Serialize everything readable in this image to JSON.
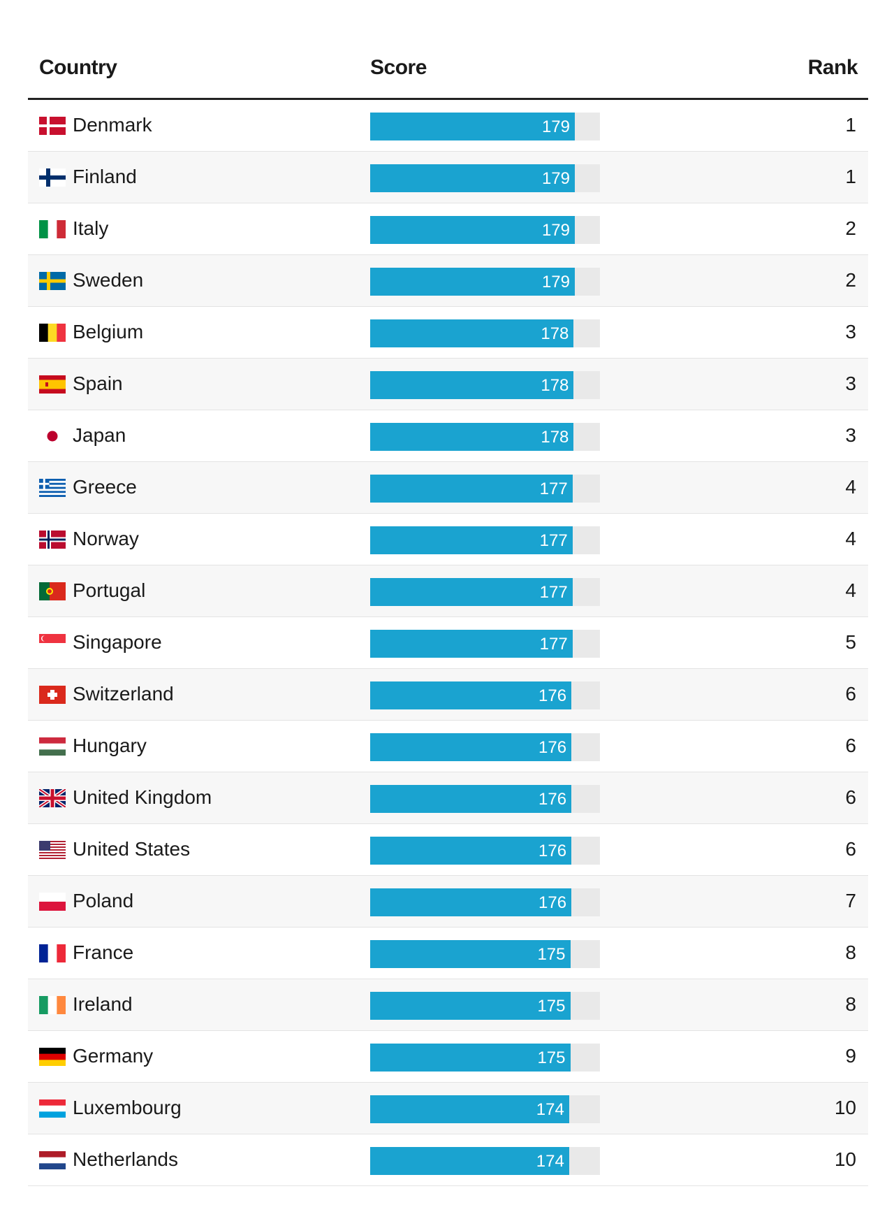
{
  "headers": {
    "country": "Country",
    "score": "Score",
    "rank": "Rank"
  },
  "colors": {
    "bar": "#1aa3d0",
    "track": "#e9e9e9"
  },
  "chart_data": {
    "type": "table",
    "columns": [
      "Country",
      "Score",
      "Rank"
    ],
    "value_range": [
      0,
      179
    ],
    "rows": [
      {
        "country": "Denmark",
        "flag": "denmark-flag",
        "score": 179,
        "rank": 1
      },
      {
        "country": "Finland",
        "flag": "finland-flag",
        "score": 179,
        "rank": 1
      },
      {
        "country": "Italy",
        "flag": "italy-flag",
        "score": 179,
        "rank": 2
      },
      {
        "country": "Sweden",
        "flag": "sweden-flag",
        "score": 179,
        "rank": 2
      },
      {
        "country": "Belgium",
        "flag": "belgium-flag",
        "score": 178,
        "rank": 3
      },
      {
        "country": "Spain",
        "flag": "spain-flag",
        "score": 178,
        "rank": 3
      },
      {
        "country": "Japan",
        "flag": "japan-flag",
        "score": 178,
        "rank": 3
      },
      {
        "country": "Greece",
        "flag": "greece-flag",
        "score": 177,
        "rank": 4
      },
      {
        "country": "Norway",
        "flag": "norway-flag",
        "score": 177,
        "rank": 4
      },
      {
        "country": "Portugal",
        "flag": "portugal-flag",
        "score": 177,
        "rank": 4
      },
      {
        "country": "Singapore",
        "flag": "singapore-flag",
        "score": 177,
        "rank": 5
      },
      {
        "country": "Switzerland",
        "flag": "switzerland-flag",
        "score": 176,
        "rank": 6
      },
      {
        "country": "Hungary",
        "flag": "hungary-flag",
        "score": 176,
        "rank": 6
      },
      {
        "country": "United Kingdom",
        "flag": "united-kingdom-flag",
        "score": 176,
        "rank": 6
      },
      {
        "country": "United States",
        "flag": "united-states-flag",
        "score": 176,
        "rank": 6
      },
      {
        "country": "Poland",
        "flag": "poland-flag",
        "score": 176,
        "rank": 7
      },
      {
        "country": "France",
        "flag": "france-flag",
        "score": 175,
        "rank": 8
      },
      {
        "country": "Ireland",
        "flag": "ireland-flag",
        "score": 175,
        "rank": 8
      },
      {
        "country": "Germany",
        "flag": "germany-flag",
        "score": 175,
        "rank": 9
      },
      {
        "country": "Luxembourg",
        "flag": "luxembourg-flag",
        "score": 174,
        "rank": 10
      },
      {
        "country": "Netherlands",
        "flag": "netherlands-flag",
        "score": 174,
        "rank": 10
      }
    ]
  }
}
